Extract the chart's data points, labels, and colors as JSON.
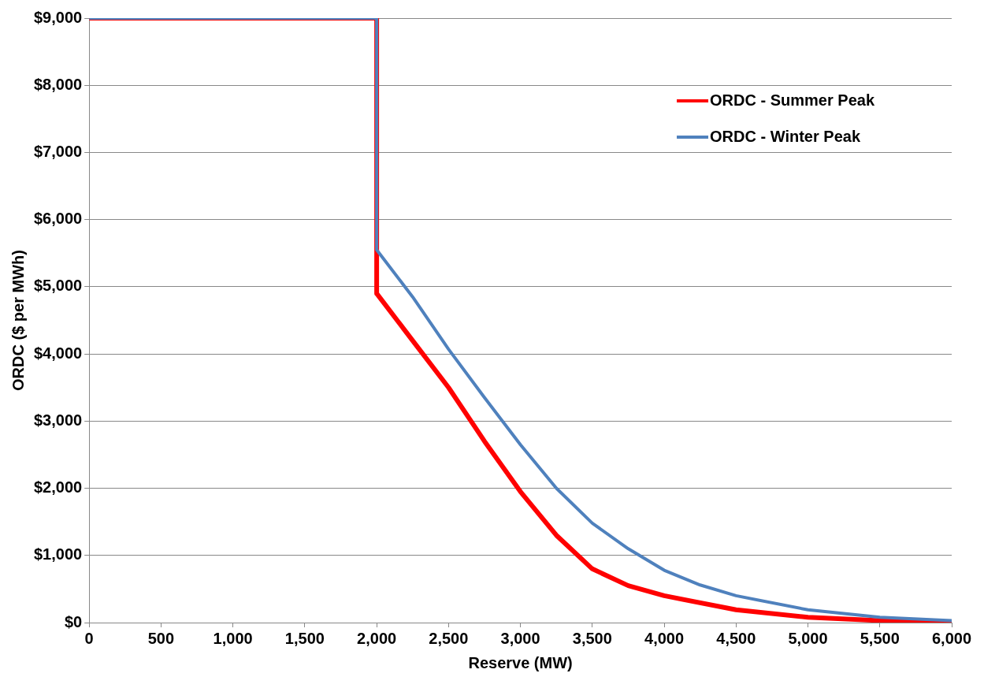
{
  "chart_data": {
    "type": "line",
    "xlabel": "Reserve (MW)",
    "ylabel": "ORDC ($ per MWh)",
    "xlim": [
      0,
      6000
    ],
    "ylim": [
      0,
      9000
    ],
    "xticks": [
      0,
      {
        "value": 500,
        "label": "500"
      },
      {
        "value": 1000,
        "label": "1,000"
      },
      {
        "value": 1500,
        "label": "1,500"
      },
      {
        "value": 2000,
        "label": "2,000"
      },
      {
        "value": 2500,
        "label": "2,500"
      },
      {
        "value": 3000,
        "label": "3,000"
      },
      {
        "value": 3500,
        "label": "3,500"
      },
      {
        "value": 4000,
        "label": "4,000"
      },
      {
        "value": 4500,
        "label": "4,500"
      },
      {
        "value": 5000,
        "label": "5,000"
      },
      {
        "value": 5500,
        "label": "5,500"
      },
      {
        "value": 6000,
        "label": "6,000"
      }
    ],
    "yticks": [
      {
        "value": 0,
        "label": "$0"
      },
      {
        "value": 1000,
        "label": "$1,000"
      },
      {
        "value": 2000,
        "label": "$2,000"
      },
      {
        "value": 3000,
        "label": "$3,000"
      },
      {
        "value": 4000,
        "label": "$4,000"
      },
      {
        "value": 5000,
        "label": "$5,000"
      },
      {
        "value": 6000,
        "label": "$6,000"
      },
      {
        "value": 7000,
        "label": "$7,000"
      },
      {
        "value": 8000,
        "label": "$8,000"
      },
      {
        "value": 9000,
        "label": "$9,000"
      }
    ],
    "grid": "y",
    "legend": "top right",
    "marker": "none",
    "line_style": "solid",
    "series": [
      {
        "name": "ORDC - Summer Peak",
        "color": "#ff0000",
        "x": [
          0,
          2000,
          2000,
          2250,
          2500,
          2750,
          3000,
          3250,
          3500,
          3750,
          4000,
          4500,
          5000,
          5500,
          6000
        ],
        "values": [
          9000,
          9000,
          4900,
          4200,
          3500,
          2700,
          1950,
          1300,
          800,
          550,
          400,
          190,
          80,
          30,
          10
        ]
      },
      {
        "name": "ORDC - Winter Peak",
        "color": "#4f81bd",
        "x": [
          0,
          2000,
          2000,
          2250,
          2500,
          2750,
          3000,
          3250,
          3500,
          3750,
          4000,
          4250,
          4500,
          5000,
          5500,
          6000
        ],
        "values": [
          9000,
          9000,
          5550,
          4850,
          4070,
          3350,
          2650,
          2000,
          1480,
          1100,
          780,
          560,
          400,
          190,
          80,
          30
        ]
      }
    ]
  }
}
